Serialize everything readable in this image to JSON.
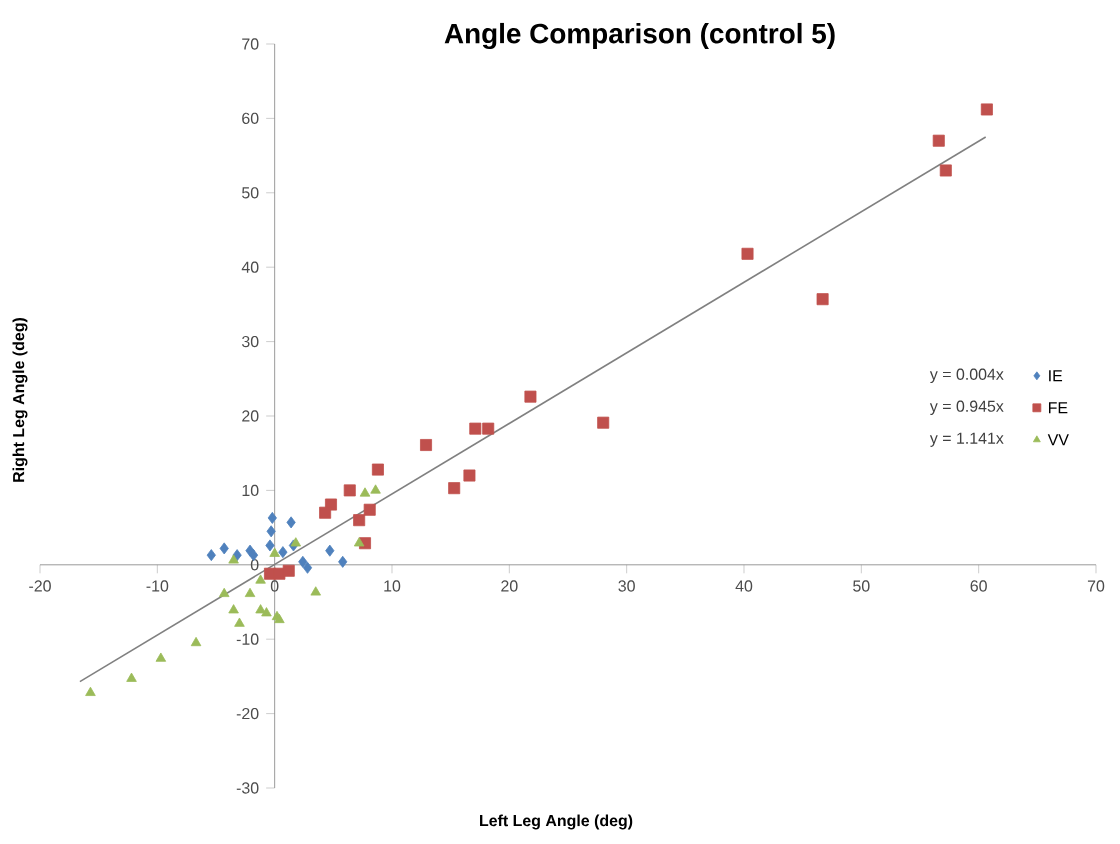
{
  "chart_data": {
    "type": "scatter",
    "title": "Angle Comparison (control 5)",
    "xlabel": "Left Leg Angle (deg)",
    "ylabel": "Right Leg Angle (deg)",
    "xlim": [
      -20,
      70
    ],
    "ylim": [
      -30,
      70
    ],
    "xticks": [
      -20,
      -10,
      0,
      10,
      20,
      30,
      40,
      50,
      60,
      70
    ],
    "yticks": [
      -30,
      -20,
      -10,
      0,
      10,
      20,
      30,
      40,
      50,
      60,
      70
    ],
    "grid": false,
    "legend": "right",
    "annotations": [
      "y = 0.004x",
      "y = 0.945x",
      "y = 1.141x"
    ],
    "series": [
      {
        "name": "IE",
        "color": "#4f81bd",
        "marker": "diamond",
        "x": [
          -0.2,
          -0.3,
          1.4,
          -5.4,
          -4.3,
          -3.2,
          -2.1,
          -1.8,
          0.7,
          1.6,
          2.8,
          2.4,
          4.7,
          5.8,
          -0.4
        ],
        "values": [
          6.3,
          4.5,
          5.7,
          1.3,
          2.2,
          1.3,
          1.9,
          1.3,
          1.7,
          2.6,
          -0.4,
          0.4,
          1.9,
          0.4,
          2.6
        ]
      },
      {
        "name": "FE",
        "color": "#c0504d",
        "marker": "square",
        "x": [
          60.7,
          56.6,
          57.2,
          40.3,
          46.7,
          21.8,
          28.0,
          17.1,
          18.2,
          12.9,
          8.8,
          16.6,
          15.3,
          6.4,
          4.8,
          4.3,
          8.1,
          7.2,
          7.7,
          -0.4,
          0.4,
          1.2
        ],
        "values": [
          61.2,
          57.0,
          53.0,
          41.8,
          35.7,
          22.6,
          19.1,
          18.3,
          18.3,
          16.1,
          12.8,
          12.0,
          10.3,
          10.0,
          8.1,
          7.0,
          7.4,
          6.0,
          2.9,
          -1.2,
          -1.2,
          -0.8
        ]
      },
      {
        "name": "VV",
        "color": "#9bbb59",
        "marker": "triangle",
        "x": [
          -15.7,
          -12.2,
          -9.7,
          -6.7,
          -4.3,
          -3.5,
          -3.0,
          -2.1,
          -1.2,
          -1.2,
          -0.7,
          0.2,
          0.4,
          3.5,
          0.0,
          1.8,
          7.2,
          7.7,
          8.6,
          -3.5
        ],
        "values": [
          -17.2,
          -15.3,
          -12.6,
          -10.5,
          -3.9,
          -6.1,
          -7.9,
          -3.9,
          -2.1,
          -6.1,
          -6.5,
          -7.0,
          -7.4,
          -3.7,
          1.5,
          2.9,
          2.9,
          9.6,
          10.0,
          0.6
        ]
      },
      {
        "type": "line",
        "color": "#808080",
        "marker": "none",
        "x": [
          -16.6,
          60.6
        ],
        "values": [
          -15.7,
          57.5
        ]
      }
    ]
  }
}
